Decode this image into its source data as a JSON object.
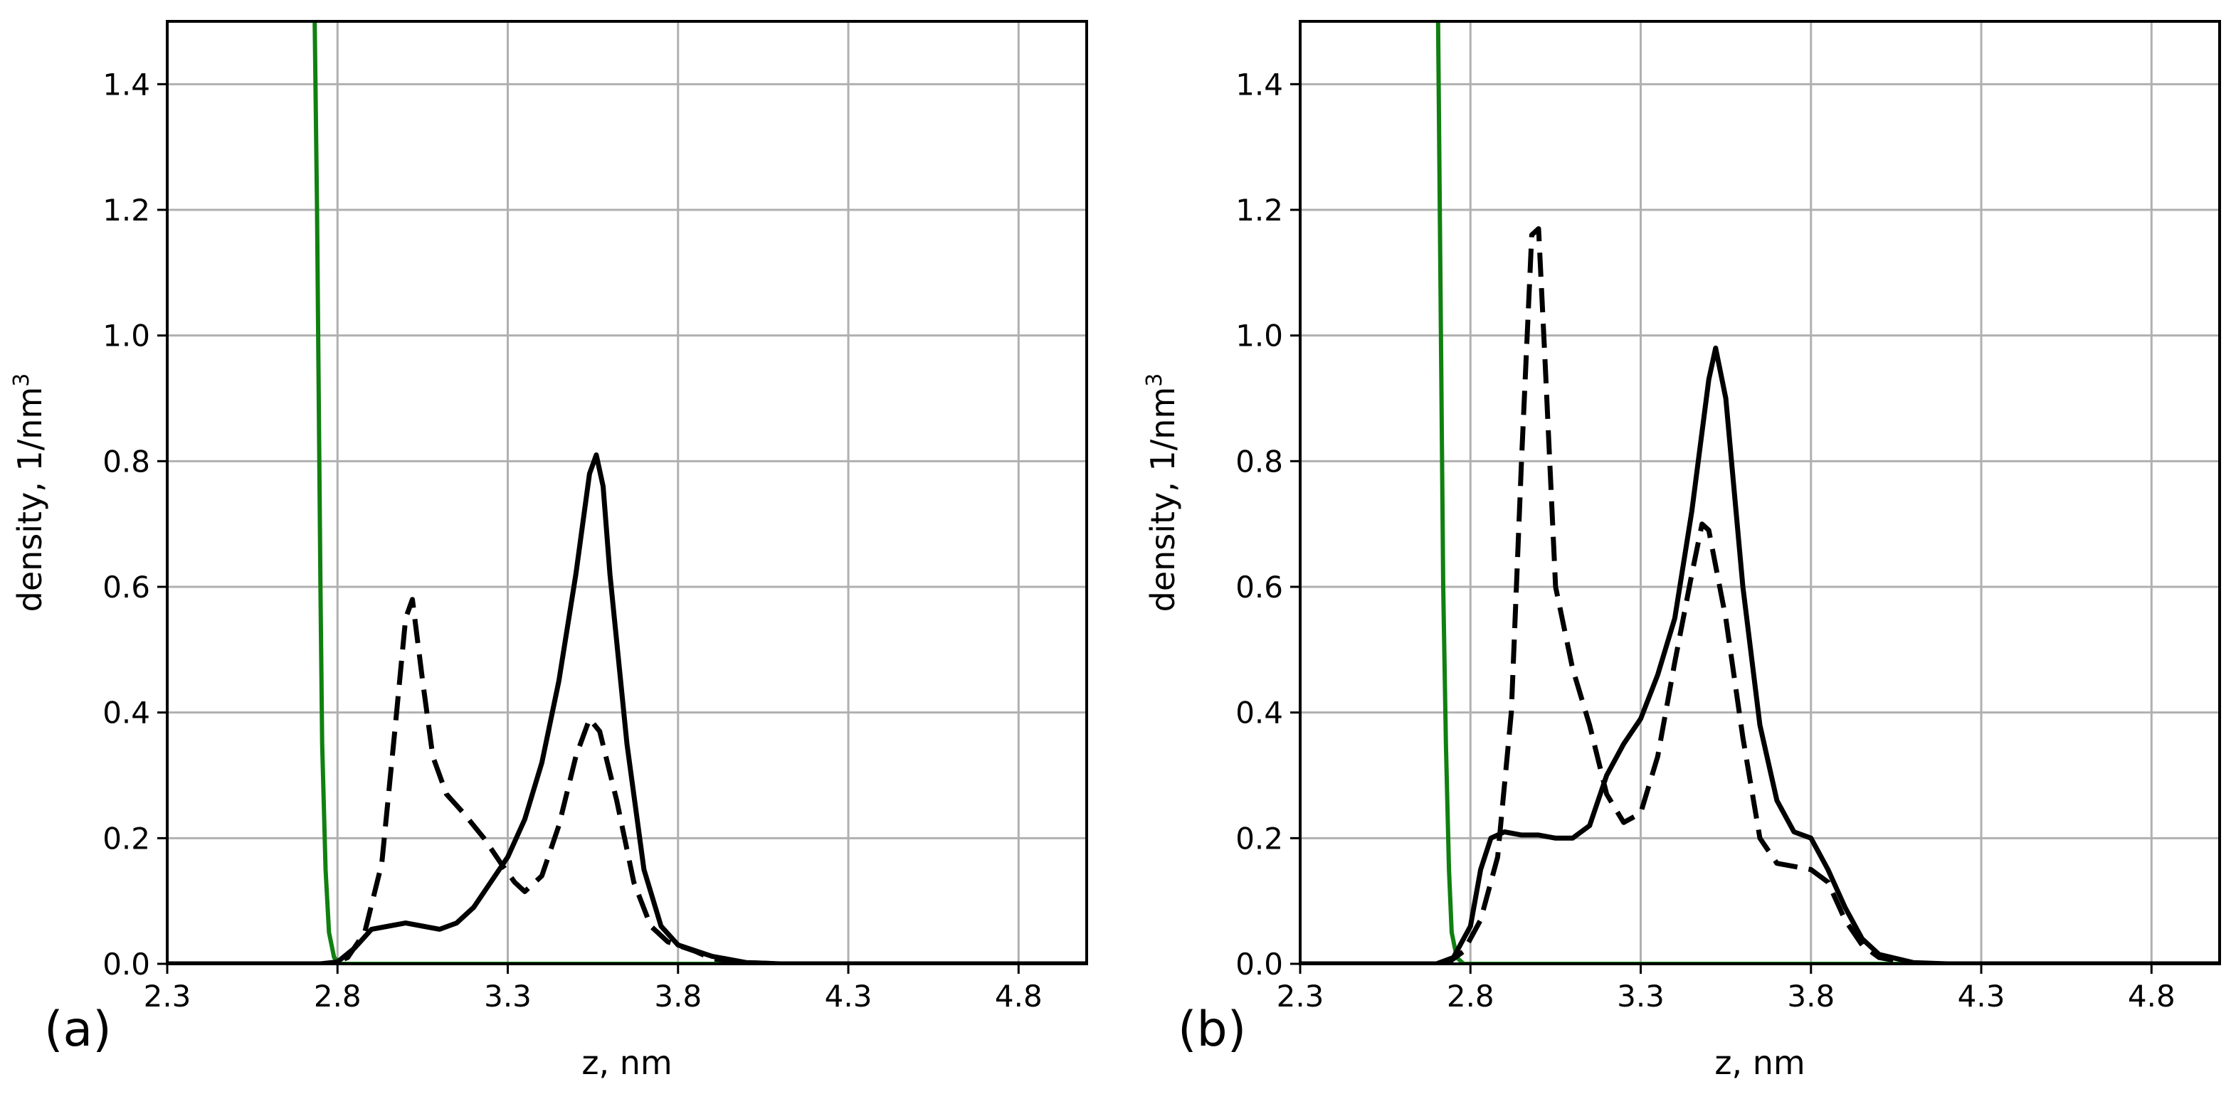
{
  "figure": {
    "panels": [
      "(a)",
      "(b)"
    ]
  },
  "chart_data": [
    {
      "type": "line",
      "panel_label": "(a)",
      "xlabel": "z, nm",
      "ylabel": "density, 1/nm",
      "ylabel_superscript": "3",
      "xlim": [
        2.3,
        5.0
      ],
      "ylim": [
        0.0,
        1.5
      ],
      "xticks": [
        "2.3",
        "2.8",
        "3.3",
        "3.8",
        "4.3",
        "4.8"
      ],
      "yticks": [
        "0.0",
        "0.2",
        "0.4",
        "0.6",
        "0.8",
        "1.0",
        "1.2",
        "1.4"
      ],
      "grid": true,
      "series": [
        {
          "name": "green solid",
          "color": "#108010",
          "style": "solid",
          "points": [
            [
              2.733,
              1.5
            ],
            [
              2.74,
              1.2
            ],
            [
              2.745,
              0.9
            ],
            [
              2.75,
              0.6
            ],
            [
              2.755,
              0.35
            ],
            [
              2.765,
              0.15
            ],
            [
              2.775,
              0.05
            ],
            [
              2.79,
              0.01
            ],
            [
              2.81,
              0.0
            ],
            [
              5.0,
              0.0
            ]
          ]
        },
        {
          "name": "black solid",
          "color": "#000000",
          "style": "solid",
          "points": [
            [
              2.3,
              0.0
            ],
            [
              2.75,
              0.0
            ],
            [
              2.8,
              0.003
            ],
            [
              2.85,
              0.025
            ],
            [
              2.9,
              0.055
            ],
            [
              2.95,
              0.06
            ],
            [
              3.0,
              0.065
            ],
            [
              3.05,
              0.06
            ],
            [
              3.1,
              0.055
            ],
            [
              3.15,
              0.065
            ],
            [
              3.2,
              0.09
            ],
            [
              3.25,
              0.13
            ],
            [
              3.3,
              0.17
            ],
            [
              3.35,
              0.23
            ],
            [
              3.4,
              0.32
            ],
            [
              3.45,
              0.45
            ],
            [
              3.5,
              0.62
            ],
            [
              3.54,
              0.78
            ],
            [
              3.56,
              0.81
            ],
            [
              3.58,
              0.76
            ],
            [
              3.6,
              0.62
            ],
            [
              3.65,
              0.35
            ],
            [
              3.7,
              0.15
            ],
            [
              3.75,
              0.06
            ],
            [
              3.8,
              0.03
            ],
            [
              3.9,
              0.012
            ],
            [
              4.0,
              0.002
            ],
            [
              4.1,
              0.0
            ],
            [
              5.0,
              0.0
            ]
          ]
        },
        {
          "name": "black dashed",
          "color": "#000000",
          "style": "dashed",
          "points": [
            [
              2.3,
              0.0
            ],
            [
              2.78,
              0.0
            ],
            [
              2.83,
              0.01
            ],
            [
              2.88,
              0.05
            ],
            [
              2.93,
              0.16
            ],
            [
              2.97,
              0.38
            ],
            [
              3.0,
              0.55
            ],
            [
              3.02,
              0.58
            ],
            [
              3.05,
              0.45
            ],
            [
              3.08,
              0.33
            ],
            [
              3.12,
              0.27
            ],
            [
              3.17,
              0.24
            ],
            [
              3.23,
              0.2
            ],
            [
              3.28,
              0.16
            ],
            [
              3.32,
              0.13
            ],
            [
              3.35,
              0.115
            ],
            [
              3.4,
              0.14
            ],
            [
              3.45,
              0.22
            ],
            [
              3.5,
              0.33
            ],
            [
              3.54,
              0.39
            ],
            [
              3.57,
              0.37
            ],
            [
              3.62,
              0.26
            ],
            [
              3.67,
              0.13
            ],
            [
              3.72,
              0.06
            ],
            [
              3.77,
              0.035
            ],
            [
              3.85,
              0.02
            ],
            [
              3.9,
              0.008
            ],
            [
              4.0,
              0.002
            ],
            [
              4.1,
              0.0
            ],
            [
              5.0,
              0.0
            ]
          ]
        }
      ]
    },
    {
      "type": "line",
      "panel_label": "(b)",
      "xlabel": "z, nm",
      "ylabel": "density, 1/nm",
      "ylabel_superscript": "3",
      "xlim": [
        2.3,
        5.0
      ],
      "ylim": [
        0.0,
        1.5
      ],
      "xticks": [
        "2.3",
        "2.8",
        "3.3",
        "3.8",
        "4.3",
        "4.8"
      ],
      "yticks": [
        "0.0",
        "0.2",
        "0.4",
        "0.6",
        "0.8",
        "1.0",
        "1.2",
        "1.4"
      ],
      "grid": true,
      "series": [
        {
          "name": "green solid",
          "color": "#108010",
          "style": "solid",
          "points": [
            [
              2.705,
              1.5
            ],
            [
              2.71,
              1.2
            ],
            [
              2.715,
              0.9
            ],
            [
              2.72,
              0.6
            ],
            [
              2.728,
              0.35
            ],
            [
              2.737,
              0.15
            ],
            [
              2.745,
              0.05
            ],
            [
              2.76,
              0.01
            ],
            [
              2.78,
              0.0
            ],
            [
              5.0,
              0.0
            ]
          ]
        },
        {
          "name": "black solid",
          "color": "#000000",
          "style": "solid",
          "points": [
            [
              2.3,
              0.0
            ],
            [
              2.7,
              0.0
            ],
            [
              2.75,
              0.01
            ],
            [
              2.8,
              0.06
            ],
            [
              2.83,
              0.15
            ],
            [
              2.86,
              0.2
            ],
            [
              2.9,
              0.21
            ],
            [
              2.95,
              0.205
            ],
            [
              3.0,
              0.205
            ],
            [
              3.05,
              0.2
            ],
            [
              3.1,
              0.2
            ],
            [
              3.15,
              0.22
            ],
            [
              3.2,
              0.3
            ],
            [
              3.25,
              0.35
            ],
            [
              3.3,
              0.39
            ],
            [
              3.35,
              0.46
            ],
            [
              3.4,
              0.55
            ],
            [
              3.45,
              0.72
            ],
            [
              3.5,
              0.93
            ],
            [
              3.52,
              0.98
            ],
            [
              3.55,
              0.9
            ],
            [
              3.6,
              0.6
            ],
            [
              3.65,
              0.38
            ],
            [
              3.7,
              0.26
            ],
            [
              3.75,
              0.21
            ],
            [
              3.8,
              0.2
            ],
            [
              3.85,
              0.15
            ],
            [
              3.9,
              0.09
            ],
            [
              3.95,
              0.04
            ],
            [
              4.0,
              0.015
            ],
            [
              4.1,
              0.002
            ],
            [
              4.2,
              0.0
            ],
            [
              5.0,
              0.0
            ]
          ]
        },
        {
          "name": "black dashed",
          "color": "#000000",
          "style": "dashed",
          "points": [
            [
              2.3,
              0.0
            ],
            [
              2.73,
              0.0
            ],
            [
              2.78,
              0.02
            ],
            [
              2.83,
              0.07
            ],
            [
              2.88,
              0.17
            ],
            [
              2.92,
              0.4
            ],
            [
              2.95,
              0.8
            ],
            [
              2.98,
              1.16
            ],
            [
              3.0,
              1.17
            ],
            [
              3.02,
              0.95
            ],
            [
              3.05,
              0.6
            ],
            [
              3.1,
              0.47
            ],
            [
              3.15,
              0.38
            ],
            [
              3.2,
              0.27
            ],
            [
              3.25,
              0.225
            ],
            [
              3.3,
              0.24
            ],
            [
              3.35,
              0.33
            ],
            [
              3.4,
              0.48
            ],
            [
              3.45,
              0.62
            ],
            [
              3.48,
              0.7
            ],
            [
              3.5,
              0.69
            ],
            [
              3.55,
              0.55
            ],
            [
              3.6,
              0.36
            ],
            [
              3.65,
              0.2
            ],
            [
              3.7,
              0.16
            ],
            [
              3.75,
              0.155
            ],
            [
              3.8,
              0.15
            ],
            [
              3.85,
              0.13
            ],
            [
              3.9,
              0.07
            ],
            [
              3.95,
              0.03
            ],
            [
              4.0,
              0.01
            ],
            [
              4.1,
              0.0
            ],
            [
              5.0,
              0.0
            ]
          ]
        }
      ]
    }
  ]
}
